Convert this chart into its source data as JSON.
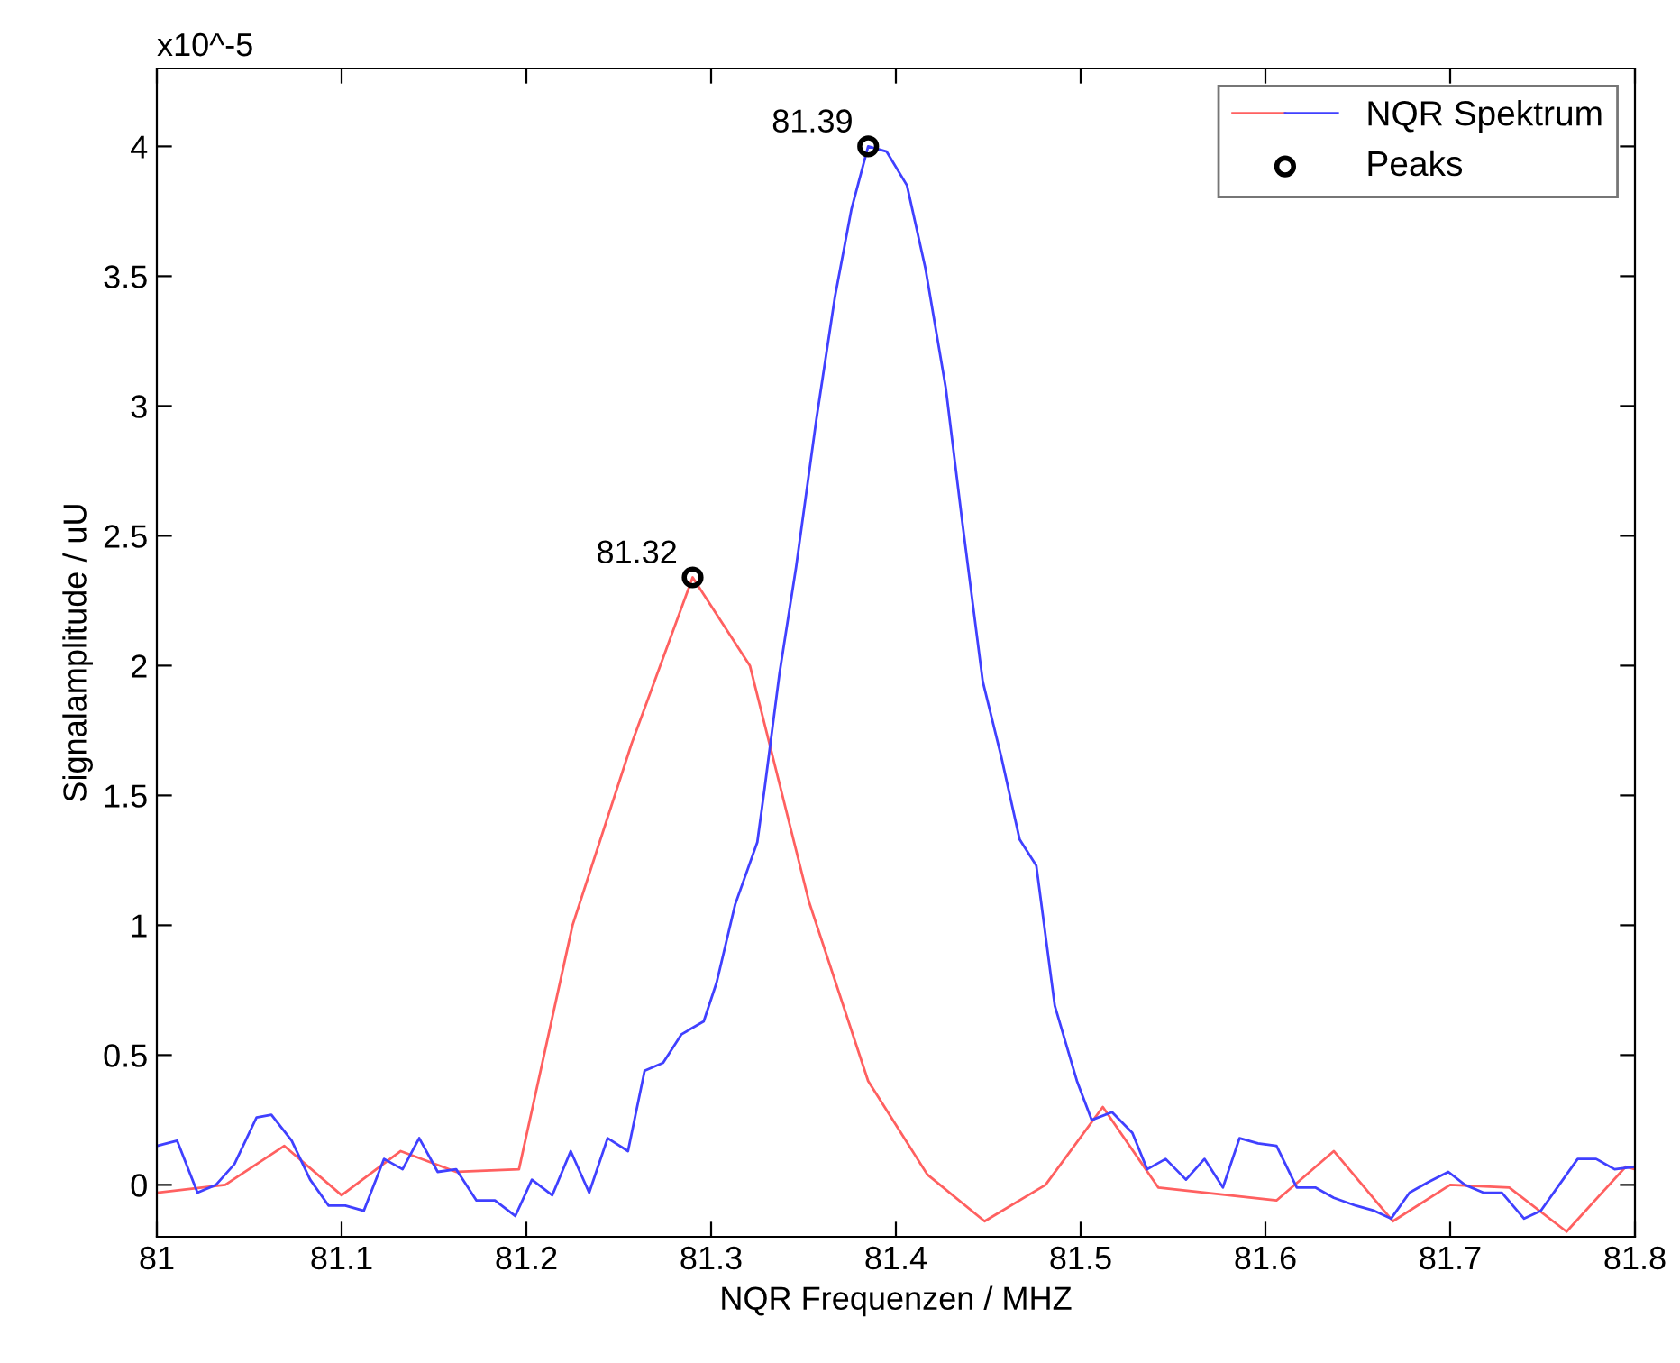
{
  "chart_data": {
    "type": "line",
    "xlabel": "NQR Frequenzen / MHZ",
    "ylabel": "Signalamplitude / uU",
    "annotations": [
      "x10^-5",
      {
        "text": "81.32",
        "x": 81.29,
        "y": 2.34
      },
      {
        "text": "81.39",
        "x": 81.385,
        "y": 4.0
      }
    ],
    "xlim": [
      81,
      81.8
    ],
    "xticks": [
      81,
      81.1,
      81.2,
      81.3,
      81.4,
      81.5,
      81.6,
      81.7,
      81.8
    ],
    "ylim": [
      -0.2,
      4.3
    ],
    "yticks": [
      0,
      0.5,
      1,
      1.5,
      2,
      2.5,
      3,
      3.5,
      4
    ],
    "grid": false,
    "legend": "top right",
    "marker": "none",
    "line_style": "solid",
    "series": [
      {
        "color": "#ff6060",
        "x": [
          81.0,
          81.037,
          81.069,
          81.1,
          81.132,
          81.162,
          81.196,
          81.225,
          81.257,
          81.29,
          81.321,
          81.353,
          81.385,
          81.417,
          81.448,
          81.481,
          81.512,
          81.542,
          81.606,
          81.637,
          81.669,
          81.7,
          81.732,
          81.763,
          81.795,
          81.8
        ],
        "values": [
          -0.03,
          0.0,
          0.15,
          -0.04,
          0.13,
          0.05,
          0.06,
          1.0,
          1.7,
          2.34,
          2.0,
          1.09,
          0.4,
          0.04,
          -0.14,
          0.0,
          0.3,
          -0.01,
          -0.06,
          0.13,
          -0.14,
          0.0,
          -0.01,
          -0.18,
          0.07,
          0.06
        ]
      },
      {
        "name": "NQR Spektrum",
        "color": "#4040ff",
        "x": [
          81.0,
          81.011,
          81.022,
          81.032,
          81.042,
          81.054,
          81.062,
          81.073,
          81.083,
          81.093,
          81.102,
          81.112,
          81.123,
          81.133,
          81.142,
          81.152,
          81.162,
          81.173,
          81.183,
          81.194,
          81.203,
          81.214,
          81.224,
          81.234,
          81.244,
          81.255,
          81.264,
          81.274,
          81.284,
          81.296,
          81.303,
          81.313,
          81.325,
          81.329,
          81.337,
          81.346,
          81.357,
          81.367,
          81.376,
          81.385,
          81.395,
          81.406,
          81.416,
          81.427,
          81.436,
          81.447,
          81.457,
          81.467,
          81.476,
          81.486,
          81.498,
          81.506,
          81.517,
          81.528,
          81.536,
          81.546,
          81.557,
          81.567,
          81.577,
          81.586,
          81.596,
          81.606,
          81.617,
          81.627,
          81.637,
          81.649,
          81.659,
          81.668,
          81.678,
          81.688,
          81.699,
          81.708,
          81.718,
          81.728,
          81.74,
          81.749,
          81.759,
          81.769,
          81.779,
          81.789,
          81.8
        ],
        "values": [
          0.15,
          0.17,
          -0.03,
          0.0,
          0.08,
          0.26,
          0.27,
          0.17,
          0.02,
          -0.08,
          -0.08,
          -0.1,
          0.1,
          0.06,
          0.18,
          0.05,
          0.06,
          -0.06,
          -0.06,
          -0.12,
          0.02,
          -0.04,
          0.13,
          -0.03,
          0.18,
          0.13,
          0.44,
          0.47,
          0.58,
          0.63,
          0.78,
          1.08,
          1.32,
          1.53,
          1.97,
          2.38,
          2.95,
          3.42,
          3.76,
          4.0,
          3.98,
          3.85,
          3.53,
          3.07,
          2.55,
          1.94,
          1.65,
          1.33,
          1.23,
          0.69,
          0.4,
          0.25,
          0.28,
          0.2,
          0.06,
          0.1,
          0.02,
          0.1,
          -0.01,
          0.18,
          0.16,
          0.15,
          -0.01,
          -0.01,
          -0.05,
          -0.08,
          -0.1,
          -0.13,
          -0.03,
          0.01,
          0.05,
          0.0,
          -0.03,
          -0.03,
          -0.13,
          -0.1,
          0.0,
          0.1,
          0.1,
          0.06,
          0.07
        ]
      },
      {
        "name": "Peaks",
        "type": "scatter",
        "color": "#000000",
        "marker": "circle",
        "x": [
          81.29,
          81.385
        ],
        "values": [
          2.34,
          4.0
        ]
      }
    ]
  }
}
